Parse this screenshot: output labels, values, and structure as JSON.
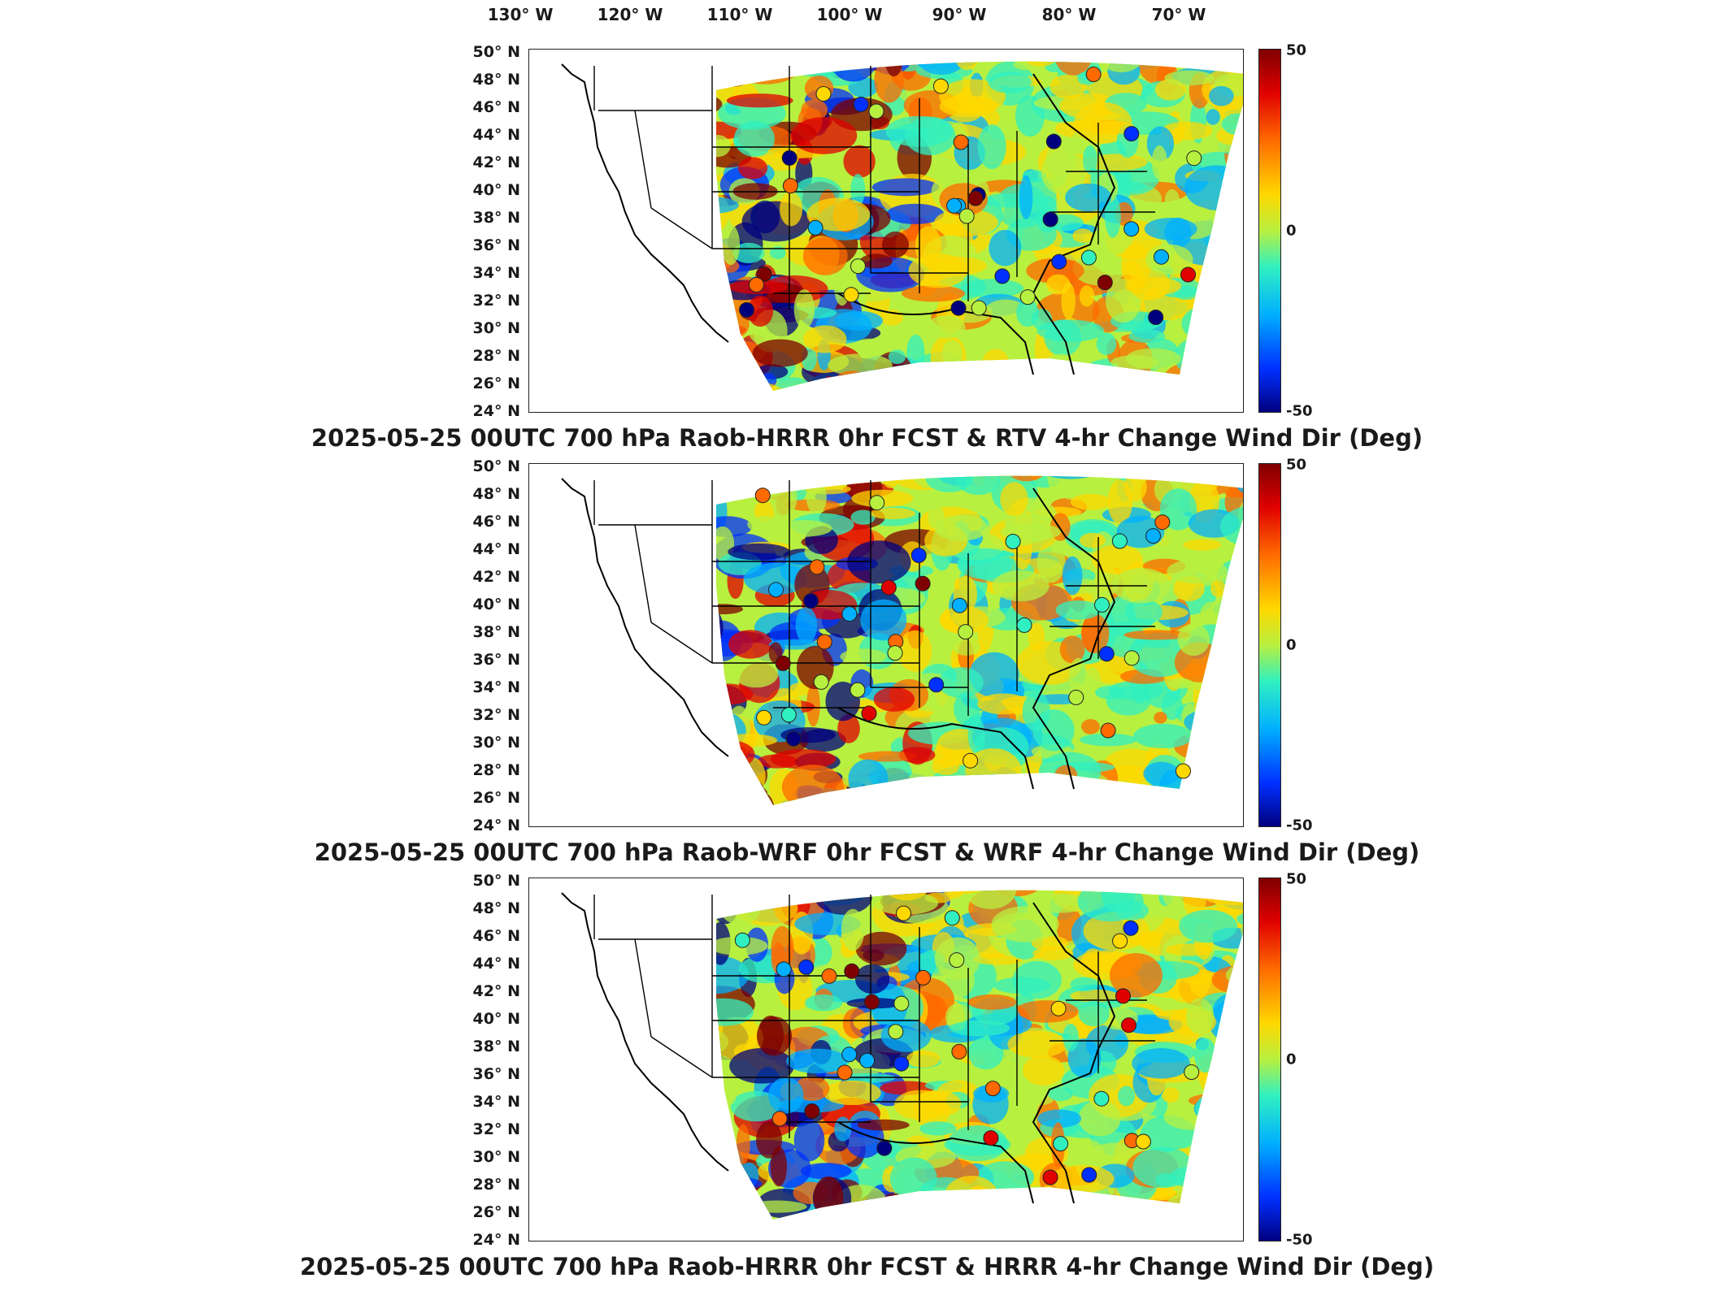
{
  "lon_ticks": [
    "130° W",
    "120° W",
    "110° W",
    "100° W",
    "90° W",
    "80° W",
    "70° W"
  ],
  "lat_ticks": [
    "50° N",
    "48° N",
    "46° N",
    "44° N",
    "42° N",
    "40° N",
    "38° N",
    "36° N",
    "34° N",
    "32° N",
    "30° N",
    "28° N",
    "26° N",
    "24° N"
  ],
  "colorbar": {
    "max": "50",
    "mid": "0",
    "min": "-50",
    "colors": [
      "#7f0000",
      "#e00000",
      "#ff6a00",
      "#ffd800",
      "#b8f040",
      "#30f0c0",
      "#00b0ff",
      "#0030ff",
      "#00007f"
    ]
  },
  "panels": [
    {
      "title": "2025-05-25 00UTC 700 hPa Raob-HRRR 0hr FCST & RTV 4-hr Change Wind Dir (Deg)"
    },
    {
      "title": "2025-05-25 00UTC 700 hPa Raob-WRF 0hr FCST & WRF 4-hr Change Wind Dir (Deg)"
    },
    {
      "title": "2025-05-25 00UTC 700 hPa Raob-HRRR 0hr FCST & HRRR 4-hr Change Wind Dir (Deg)"
    }
  ]
}
